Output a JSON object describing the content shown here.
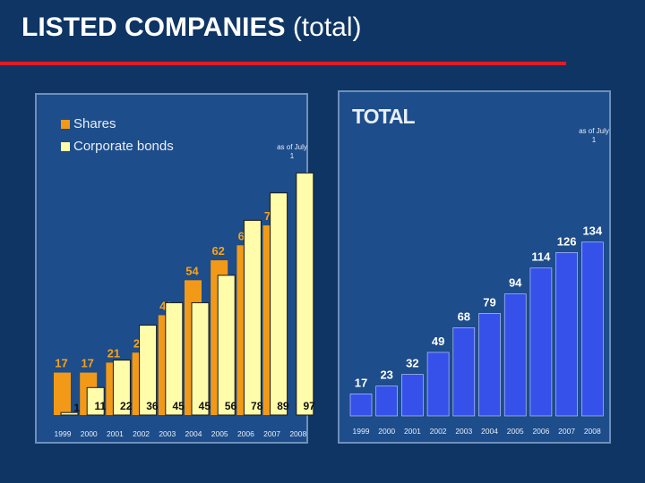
{
  "page": {
    "title_bold": "LISTED COMPANIES",
    "title_rest": "(total)"
  },
  "colors": {
    "background": "#0e3564",
    "rule": "#e21b24",
    "shares": "#f29a17",
    "bonds": "#fffcaa",
    "total": "#3551ea",
    "orange_label": "#f7a21c",
    "panel": "#1d4d8a"
  },
  "chart_data": [
    {
      "type": "bar",
      "title": "",
      "categories": [
        "1999",
        "2000",
        "2001",
        "2002",
        "2003",
        "2004",
        "2005",
        "2006",
        "2007",
        "2008"
      ],
      "series": [
        {
          "name": "Shares",
          "values": [
            17,
            17,
            21,
            25,
            40,
            54,
            62,
            68,
            76,
            null
          ]
        },
        {
          "name": "Corporate bonds",
          "values": [
            1,
            11,
            22,
            36,
            45,
            45,
            56,
            78,
            89,
            97
          ]
        }
      ],
      "note": "as of July 1",
      "legend_position": "top-left",
      "ylim": [
        0,
        110
      ]
    },
    {
      "type": "bar",
      "title": "TOTAL",
      "categories": [
        "1999",
        "2000",
        "2001",
        "2002",
        "2003",
        "2004",
        "2005",
        "2006",
        "2007",
        "2008"
      ],
      "series": [
        {
          "name": "Total",
          "values": [
            17,
            23,
            32,
            49,
            68,
            79,
            94,
            114,
            126,
            134
          ]
        }
      ],
      "note": "as of July 1",
      "ylim": [
        0,
        150
      ]
    }
  ]
}
